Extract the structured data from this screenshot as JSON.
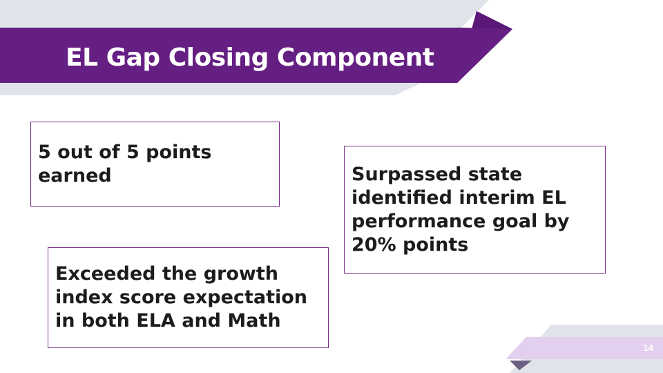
{
  "slide": {
    "title": "EL Gap Closing Component",
    "boxes": [
      {
        "text": "5 out of  5 points earned"
      },
      {
        "text": "Surpassed state identified interim EL performance goal by 20% points"
      },
      {
        "text": "Exceeded the growth index score expectation in both ELA and Math"
      }
    ],
    "page_number": "14"
  },
  "colors": {
    "banner_purple": "#651f82",
    "banner_dark": "#5a1878",
    "light_gray": "#e1e3ea",
    "light_lavender": "#e3cfee",
    "box_border": "#7a2a8a"
  }
}
